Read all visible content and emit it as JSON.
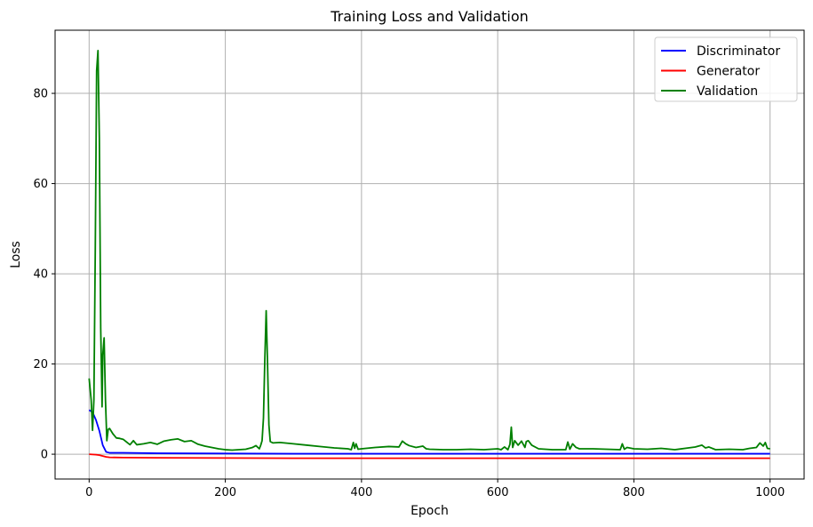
{
  "chart_data": {
    "type": "line",
    "title": "Training Loss and Validation",
    "xlabel": "Epoch",
    "ylabel": "Loss",
    "xlim": [
      -50,
      1050
    ],
    "ylim": [
      -5.5,
      94
    ],
    "xticks": [
      0,
      200,
      400,
      600,
      800,
      1000
    ],
    "yticks": [
      0,
      20,
      40,
      60,
      80
    ],
    "grid": true,
    "legend_position": "top-right",
    "series": [
      {
        "name": "Discriminator",
        "color": "#0000ff",
        "x": [
          0,
          5,
          10,
          15,
          20,
          25,
          30,
          50,
          100,
          200,
          300,
          400,
          500,
          600,
          700,
          800,
          900,
          1000
        ],
        "y": [
          9.8,
          9.3,
          7.6,
          5.2,
          2.0,
          0.5,
          0.3,
          0.3,
          0.2,
          0.15,
          0.1,
          0.1,
          0.1,
          0.1,
          0.1,
          0.1,
          0.1,
          0.1
        ]
      },
      {
        "name": "Generator",
        "color": "#ff0000",
        "x": [
          0,
          5,
          10,
          15,
          20,
          25,
          30,
          50,
          100,
          200,
          300,
          400,
          500,
          600,
          700,
          800,
          900,
          1000
        ],
        "y": [
          0.0,
          -0.05,
          -0.1,
          -0.2,
          -0.4,
          -0.6,
          -0.7,
          -0.75,
          -0.8,
          -0.85,
          -0.9,
          -0.9,
          -0.9,
          -0.9,
          -0.9,
          -0.9,
          -0.9,
          -0.9
        ]
      },
      {
        "name": "Validation",
        "color": "#008000",
        "x": [
          0,
          3,
          5,
          7,
          9,
          11,
          13,
          15,
          17,
          19,
          20,
          22,
          24,
          26,
          28,
          30,
          35,
          40,
          45,
          50,
          60,
          65,
          70,
          80,
          90,
          100,
          110,
          120,
          130,
          140,
          150,
          160,
          170,
          180,
          190,
          200,
          210,
          220,
          230,
          240,
          245,
          250,
          252,
          254,
          256,
          258,
          260,
          262,
          264,
          266,
          270,
          280,
          300,
          320,
          340,
          360,
          380,
          385,
          388,
          390,
          392,
          395,
          400,
          420,
          440,
          455,
          460,
          465,
          470,
          480,
          490,
          495,
          500,
          520,
          540,
          560,
          580,
          600,
          605,
          610,
          615,
          618,
          620,
          622,
          625,
          630,
          635,
          640,
          642,
          645,
          650,
          660,
          680,
          700,
          703,
          706,
          710,
          715,
          720,
          740,
          760,
          780,
          783,
          786,
          790,
          800,
          820,
          840,
          860,
          880,
          890,
          900,
          905,
          910,
          920,
          940,
          960,
          970,
          980,
          985,
          990,
          993,
          996,
          1000
        ],
        "y": [
          16.8,
          12.0,
          5.3,
          12.0,
          45.0,
          85.0,
          89.5,
          70.0,
          28.0,
          10.5,
          22.0,
          25.8,
          12.0,
          3.0,
          5.5,
          5.7,
          4.5,
          3.6,
          3.5,
          3.3,
          2.1,
          3.0,
          2.1,
          2.3,
          2.6,
          2.2,
          2.9,
          3.2,
          3.4,
          2.8,
          3.0,
          2.2,
          1.8,
          1.5,
          1.2,
          1.0,
          0.9,
          1.0,
          1.1,
          1.5,
          1.9,
          1.2,
          2.0,
          3.0,
          8.0,
          21.0,
          31.8,
          20.0,
          6.5,
          2.8,
          2.5,
          2.6,
          2.3,
          2.0,
          1.7,
          1.4,
          1.2,
          1.0,
          2.6,
          1.3,
          2.3,
          1.1,
          1.2,
          1.5,
          1.7,
          1.6,
          2.9,
          2.3,
          1.9,
          1.5,
          1.8,
          1.2,
          1.1,
          1.0,
          1.0,
          1.1,
          1.0,
          1.2,
          1.0,
          1.6,
          1.0,
          2.2,
          6.0,
          1.5,
          3.0,
          2.0,
          2.9,
          1.5,
          2.8,
          3.0,
          2.0,
          1.2,
          1.0,
          1.0,
          2.7,
          1.1,
          2.3,
          1.5,
          1.2,
          1.2,
          1.1,
          1.0,
          2.3,
          1.1,
          1.5,
          1.2,
          1.1,
          1.3,
          1.0,
          1.4,
          1.6,
          2.0,
          1.4,
          1.6,
          1.0,
          1.1,
          1.0,
          1.3,
          1.5,
          2.5,
          1.8,
          2.6,
          1.3,
          1.2
        ]
      }
    ]
  }
}
